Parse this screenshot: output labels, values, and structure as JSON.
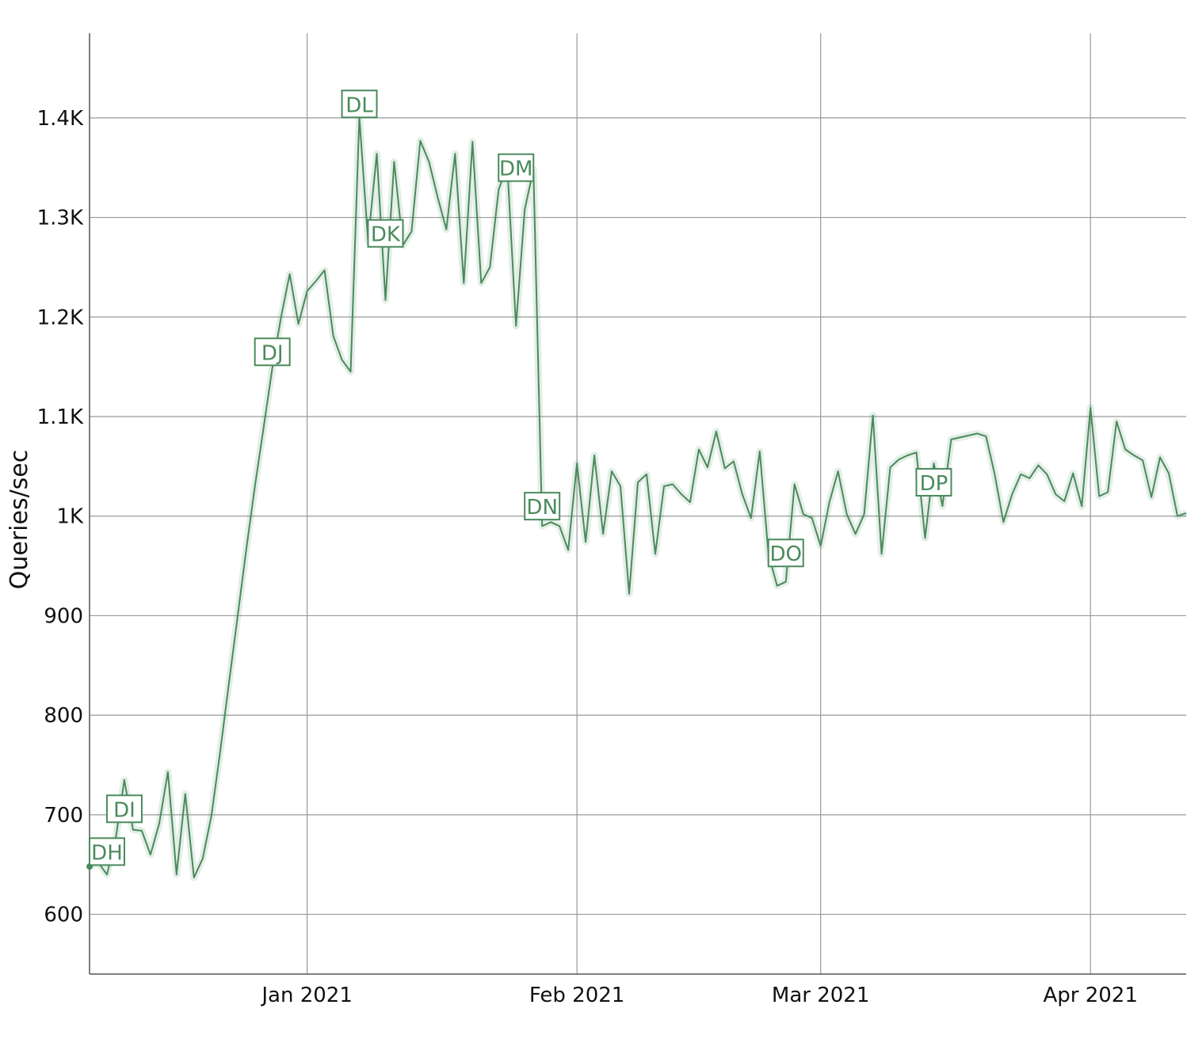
{
  "chart_data": {
    "type": "line",
    "y_label": "Queries/sec",
    "color": "#4a8a5c",
    "grid": true,
    "categories": [
      null,
      null,
      null,
      null,
      null,
      null,
      null,
      null,
      null,
      null,
      null,
      null,
      null,
      null,
      null,
      null,
      null,
      null,
      null,
      null,
      null,
      null,
      null,
      null,
      null,
      "Jan 2021",
      null,
      null,
      null,
      null,
      null,
      null,
      null,
      null,
      null,
      null,
      null,
      null,
      null,
      null,
      null,
      null,
      null,
      null,
      null,
      null,
      null,
      null,
      null,
      null,
      null,
      null,
      null,
      null,
      null,
      null,
      "Feb 2021",
      null,
      null,
      null,
      null,
      null,
      null,
      null,
      null,
      null,
      null,
      null,
      null,
      null,
      null,
      null,
      null,
      null,
      null,
      null,
      null,
      null,
      null,
      null,
      null,
      null,
      null,
      null,
      "Mar 2021",
      null,
      null,
      null,
      null,
      null,
      null,
      null,
      null,
      null,
      null,
      null,
      null,
      null,
      null,
      null,
      null,
      null,
      null,
      null,
      null,
      null,
      null,
      null,
      null,
      null,
      null,
      null,
      null,
      null,
      null,
      "Apr 2021",
      null,
      null,
      null,
      null,
      null,
      null,
      null,
      null,
      null,
      null,
      null
    ],
    "values": [
      648,
      652,
      640,
      676,
      735,
      685,
      684,
      660,
      691,
      743,
      640,
      721,
      637,
      656,
      699,
      763,
      831,
      898,
      966,
      1030,
      1089,
      1149,
      1200,
      1243,
      1193,
      1226,
      1236,
      1247,
      1181,
      1157,
      1145,
      1401,
      1276,
      1364,
      1217,
      1356,
      1272,
      1286,
      1377,
      1356,
      1320,
      1288,
      1364,
      1234,
      1376,
      1234,
      1250,
      1328,
      1352,
      1191,
      1308,
      1348,
      990,
      994,
      990,
      966,
      1053,
      974,
      1061,
      982,
      1045,
      1030,
      922,
      1034,
      1042,
      962,
      1030,
      1032,
      1022,
      1014,
      1067,
      1049,
      1085,
      1048,
      1055,
      1022,
      998,
      1065,
      962,
      930,
      934,
      1032,
      1002,
      998,
      970,
      1014,
      1045,
      1002,
      982,
      1002,
      1101,
      962,
      1049,
      1057,
      1061,
      1064,
      978,
      1053,
      1010,
      1077,
      1079,
      1081,
      1083,
      1080,
      1042,
      994,
      1022,
      1042,
      1038,
      1051,
      1042,
      1022,
      1015,
      1043,
      1010,
      1109,
      1020,
      1024,
      1095,
      1067,
      1061,
      1056,
      1019,
      1059,
      1043,
      1000,
      1003
    ],
    "ylim": [
      540,
      1485
    ],
    "yticks": [
      600,
      700,
      800,
      900,
      {
        "value": 1000,
        "label": "1K"
      },
      {
        "value": 1100,
        "label": "1.1K"
      },
      {
        "value": 1200,
        "label": "1.2K"
      },
      {
        "value": 1300,
        "label": "1.3K"
      },
      {
        "value": 1400,
        "label": "1.4K"
      }
    ],
    "annotations": [
      {
        "text": "DH",
        "index": 2,
        "value": 663
      },
      {
        "text": "DI",
        "index": 4,
        "value": 706
      },
      {
        "text": "DJ",
        "index": 21,
        "value": 1165
      },
      {
        "text": "DK",
        "index": 34,
        "value": 1284
      },
      {
        "text": "DL",
        "index": 31,
        "value": 1414
      },
      {
        "text": "DM",
        "index": 49,
        "value": 1350
      },
      {
        "text": "DN",
        "index": 52,
        "value": 1010
      },
      {
        "text": "DO",
        "index": 80,
        "value": 963
      },
      {
        "text": "DP",
        "index": 97,
        "value": 1034
      }
    ]
  }
}
